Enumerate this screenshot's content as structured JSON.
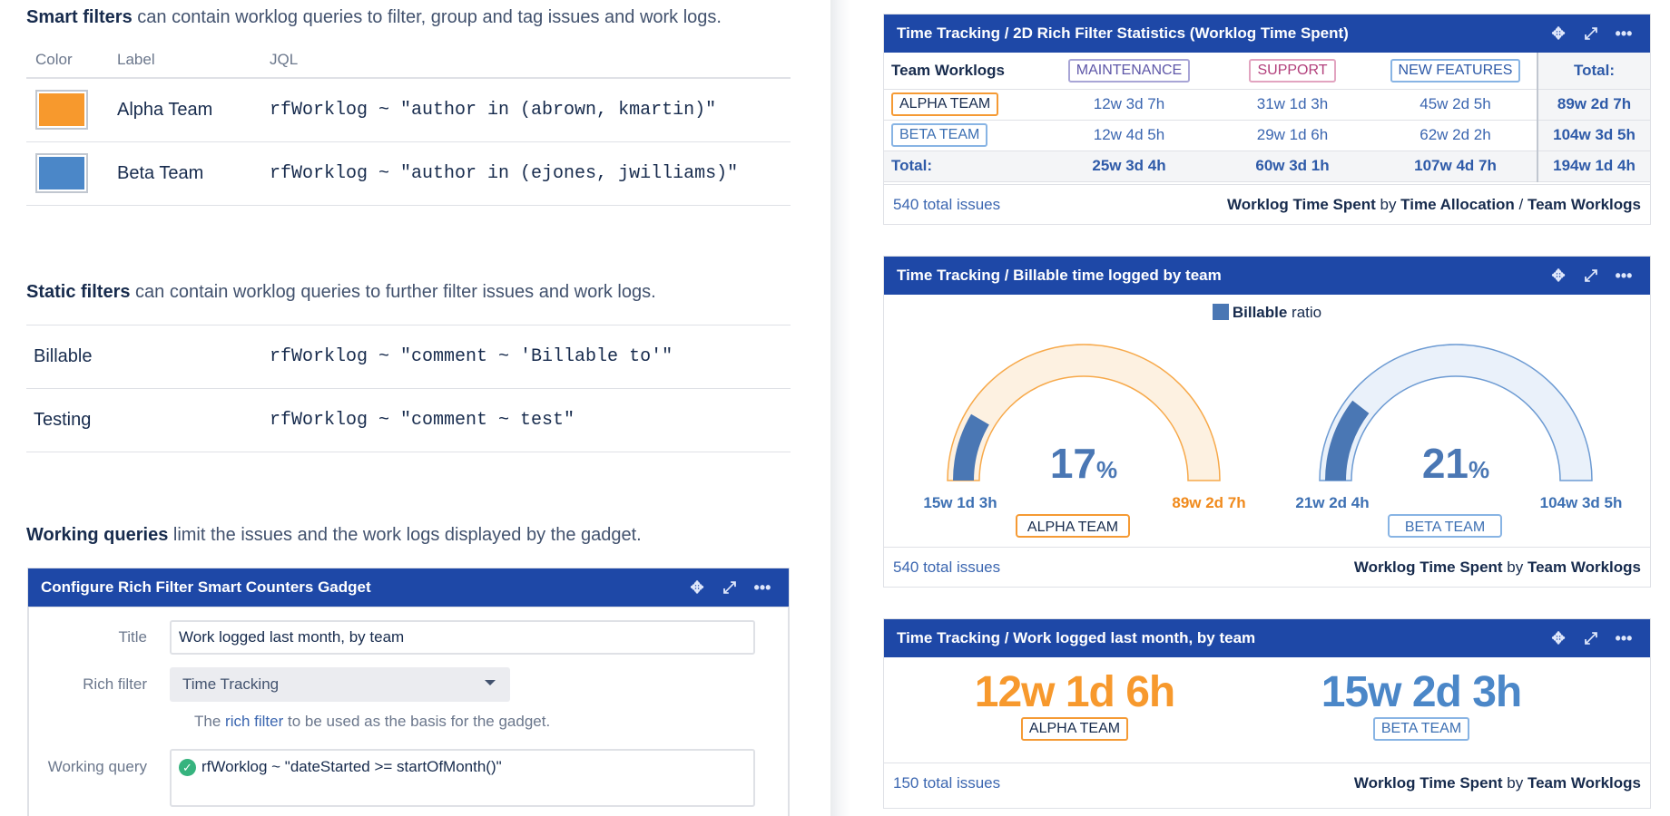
{
  "smart": {
    "intro_bold": "Smart filters",
    "intro_rest": " can contain worklog queries to filter, group and tag issues and work logs.",
    "headers": {
      "color": "Color",
      "label": "Label",
      "jql": "JQL"
    },
    "rows": [
      {
        "color": "#f7992d",
        "label": "Alpha Team",
        "jql": "rfWorklog ~ \"author in (abrown, kmartin)\""
      },
      {
        "color": "#4b87c8",
        "label": "Beta Team",
        "jql": "rfWorklog ~ \"author in (ejones, jwilliams)\""
      }
    ]
  },
  "static": {
    "intro_bold": "Static filters",
    "intro_rest": " can contain worklog queries to further filter issues and work logs.",
    "rows": [
      {
        "label": "Billable",
        "jql": "rfWorklog ~ \"comment ~ 'Billable to'\""
      },
      {
        "label": "Testing",
        "jql": "rfWorklog ~ \"comment ~ test\""
      }
    ]
  },
  "working": {
    "intro_bold": "Working queries",
    "intro_rest": " limit the issues and the work logs displayed by the gadget."
  },
  "config": {
    "header": "Configure Rich Filter Smart Counters Gadget",
    "title_label": "Title",
    "title_value": "Work logged last month, by team",
    "rich_filter_label": "Rich filter",
    "rich_filter_value": "Time Tracking",
    "hint_pre": "The ",
    "hint_link": "rich filter",
    "hint_post": " to be used as the basis for the gadget.",
    "working_query_label": "Working query",
    "working_query_value": "rfWorklog ~ \"dateStarted >= startOfMonth()\""
  },
  "stats_gadget": {
    "title": "Time Tracking / 2D Rich Filter Statistics (Worklog Time Spent)",
    "corner": "Team Worklogs",
    "columns": [
      "MAINTENANCE",
      "SUPPORT",
      "NEW FEATURES"
    ],
    "total_label": "Total:",
    "rows": [
      {
        "name": "ALPHA TEAM",
        "values": [
          "12w 3d 7h",
          "31w 1d 3h",
          "45w 2d 5h"
        ],
        "total": "89w 2d 7h"
      },
      {
        "name": "BETA TEAM",
        "values": [
          "12w 4d 5h",
          "29w 1d 6h",
          "62w 2d 2h"
        ],
        "total": "104w 3d 5h"
      }
    ],
    "totals": [
      "25w 3d 4h",
      "60w 3d 1h",
      "107w 4d 7h"
    ],
    "grand_total": "194w 1d 4h",
    "footer_link": "540 total issues",
    "footer_a": "Worklog Time Spent",
    "footer_by": " by ",
    "footer_b": "Time Allocation",
    "footer_sep": " / ",
    "footer_c": "Team Worklogs"
  },
  "billable_gadget": {
    "title": "Time Tracking / Billable time logged by team",
    "legend_bold": "Billable",
    "legend_rest": " ratio",
    "legend_color": "#4a77b4",
    "gauges": [
      {
        "team": "ALPHA TEAM",
        "percent": 17,
        "percent_text": "17",
        "left": "15w 1d 3h",
        "right": "89w 2d 7h",
        "ring_color": "#f7a94a",
        "ring_fill": "#fdf1e1",
        "right_color": "#f08a1c"
      },
      {
        "team": "BETA TEAM",
        "percent": 21,
        "percent_text": "21",
        "left": "21w 2d 4h",
        "right": "104w 3d 5h",
        "ring_color": "#6d9bd3",
        "ring_fill": "#eaf1fa",
        "right_color": "#3d70b3"
      }
    ],
    "percent_sign": "%",
    "footer_link": "540 total issues",
    "footer_a": "Worklog Time Spent",
    "footer_by": " by ",
    "footer_b": "Team Worklogs"
  },
  "counters_gadget": {
    "title": "Time Tracking / Work logged last month, by team",
    "counters": [
      {
        "value": "12w 1d 6h",
        "team": "ALPHA TEAM",
        "color": "#f7992d"
      },
      {
        "value": "15w 2d 3h",
        "team": "BETA TEAM",
        "color": "#4b87c8"
      }
    ],
    "footer_link": "150 total issues",
    "footer_a": "Worklog Time Spent",
    "footer_by": " by ",
    "footer_b": "Team Worklogs"
  },
  "icons": {
    "move": "move-icon",
    "expand": "expand-icon",
    "more": "more-icon",
    "check": "check-circle-icon",
    "dropdown": "chevron-down-icon"
  }
}
